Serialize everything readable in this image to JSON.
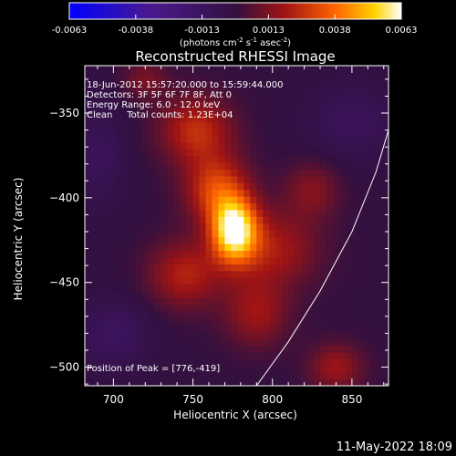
{
  "chart_data": {
    "type": "heatmap",
    "title": "Reconstructed RHESSI Image",
    "xlabel": "Heliocentric X (arcsec)",
    "ylabel": "Heliocentric Y (arcsec)",
    "xlim": [
      682,
      873
    ],
    "ylim": [
      -511,
      -322
    ],
    "x_ticks": [
      700,
      750,
      800,
      850
    ],
    "y_ticks": [
      -350,
      -400,
      -450,
      -500
    ],
    "colorbar": {
      "ticks": [
        "-0.0063",
        "-0.0038",
        "-0.0013",
        "0.0013",
        "0.0038",
        "0.0063"
      ],
      "range": [
        -0.0063,
        0.0063
      ],
      "units_prefix": "(photons cm",
      "units_exp1": "-2",
      "units_mid": " s",
      "units_exp2": "-1",
      "units_mid2": " asec",
      "units_exp3": "-2",
      "units_suffix": ")"
    },
    "annotations": [
      "18-Jun-2012 15:57:20.000 to 15:59:44.000",
      "Detectors: 3F 5F 6F 7F 8F, Att 0",
      "Energy Range: 6.0 - 12.0 keV",
      "Clean     Total counts: 1.23E+04"
    ],
    "peak_label": "Position of Peak = [776,-419]",
    "peak": {
      "x": 776,
      "y": -419,
      "value": 0.0063
    },
    "sources": [
      {
        "x": 776,
        "y": -419,
        "sx": 10,
        "sy": 13,
        "amp": 0.006
      },
      {
        "x": 765,
        "y": -395,
        "sx": 14,
        "sy": 14,
        "amp": 0.003
      },
      {
        "x": 752,
        "y": -360,
        "sx": 16,
        "sy": 14,
        "amp": 0.0025
      },
      {
        "x": 745,
        "y": -445,
        "sx": 16,
        "sy": 14,
        "amp": 0.0022
      },
      {
        "x": 800,
        "y": -430,
        "sx": 20,
        "sy": 16,
        "amp": 0.002
      },
      {
        "x": 790,
        "y": -468,
        "sx": 14,
        "sy": 14,
        "amp": 0.0018
      },
      {
        "x": 840,
        "y": -500,
        "sx": 12,
        "sy": 10,
        "amp": 0.0018
      },
      {
        "x": 825,
        "y": -395,
        "sx": 12,
        "sy": 12,
        "amp": 0.0014
      },
      {
        "x": 720,
        "y": -330,
        "sx": 10,
        "sy": 8,
        "amp": 0.0012
      },
      {
        "x": 700,
        "y": -480,
        "sx": 16,
        "sy": 14,
        "amp": -0.0012
      },
      {
        "x": 850,
        "y": -355,
        "sx": 20,
        "sy": 16,
        "amp": -0.001
      },
      {
        "x": 690,
        "y": -375,
        "sx": 12,
        "sy": 22,
        "amp": -0.001
      }
    ],
    "limb_curve": [
      [
        790,
        -511
      ],
      [
        810,
        -485
      ],
      [
        830,
        -455
      ],
      [
        850,
        -420
      ],
      [
        865,
        -385
      ],
      [
        873,
        -360
      ]
    ],
    "grid": false
  },
  "timestamp": "11-May-2022 18:09"
}
